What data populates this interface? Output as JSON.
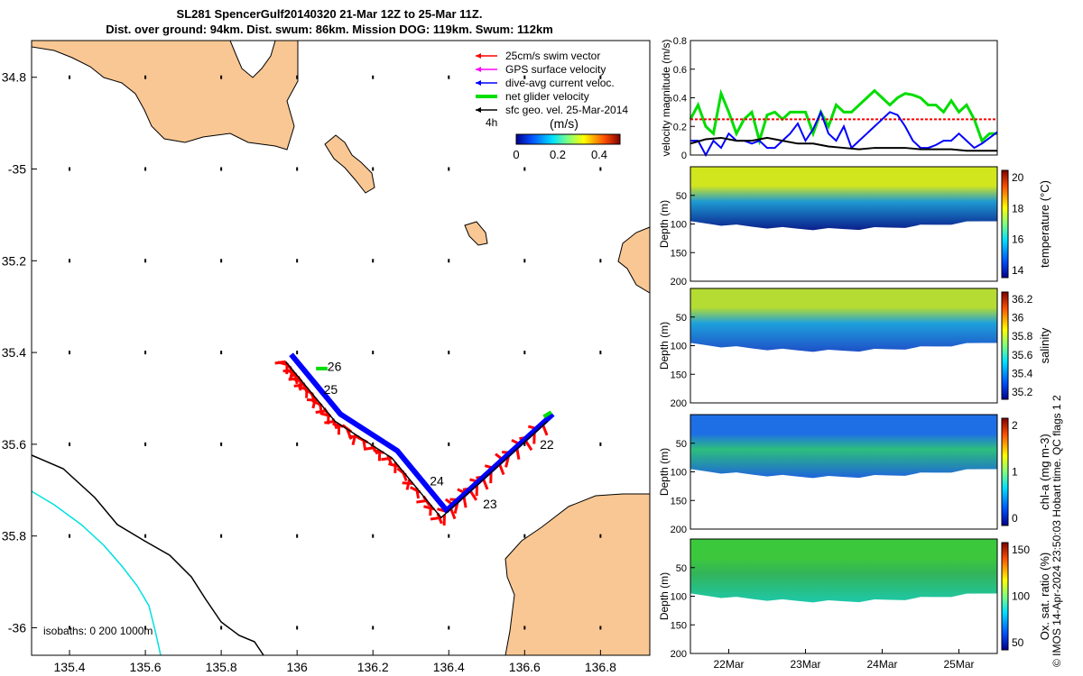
{
  "title": {
    "line1": "SL281 SpencerGulf20140320 21-Mar 12Z to 25-Mar 11Z.",
    "line2": "Dist. over ground: 94km. Dist. swum: 86km. Mission DOG: 119km. Swum: 112km"
  },
  "side_caption": "© IMOS 14-Apr-2024 23:50:03 Hobart time. QC flags 1  2",
  "colors": {
    "land": "#f9c794",
    "swim": "#ff0000",
    "gps": "#ff00ff",
    "dive": "#0000ff",
    "net": "#00dd00",
    "sfc": "#000000",
    "isobath200": "#000000",
    "isobath0": "#00e0e0"
  },
  "chart_data": [
    {
      "type": "map",
      "x_ticks": [
        135.4,
        135.6,
        135.8,
        136,
        136.2,
        136.4,
        136.6,
        136.8
      ],
      "x_tick_labels": [
        "135.4",
        "135.6",
        "135.8",
        "136",
        "136.2",
        "136.4",
        "136.6",
        "136.8"
      ],
      "y_ticks": [
        -34.8,
        -35,
        -35.2,
        -35.4,
        -35.6,
        -35.8,
        -36
      ],
      "y_tick_labels": [
        "34.8",
        "-35",
        "35.2",
        "35.4",
        "35.6",
        "35.8",
        "-36"
      ],
      "xlim": [
        135.3,
        136.93
      ],
      "ylim": [
        -36.06,
        -34.72
      ],
      "legend": [
        {
          "label": "25cm/s swim vector",
          "color": "#ff0000",
          "style": "arrow"
        },
        {
          "label": "GPS surface velocity",
          "color": "#ff00ff",
          "style": "arrow"
        },
        {
          "label": "dive-avg current veloc.",
          "color": "#0000ff",
          "style": "arrow"
        },
        {
          "label": "net glider velocity",
          "color": "#00dd00",
          "style": "thick"
        },
        {
          "label": "sfc geo. vel. 25-Mar-2014",
          "color": "#000000",
          "style": "arrow"
        }
      ],
      "legend_placement": "top-right",
      "colorbar": {
        "label": "(m/s)",
        "corner_label": "4h",
        "ticks": [
          0,
          0.2,
          0.4
        ],
        "tick_labels": [
          "0",
          "0.2",
          "0.4"
        ],
        "range": [
          0,
          0.5
        ]
      },
      "track": [
        {
          "lon": 135.97,
          "lat": -35.42
        },
        {
          "lon": 136.02,
          "lat": -35.47
        },
        {
          "lon": 136.1,
          "lat": -35.55
        },
        {
          "lon": 136.25,
          "lat": -35.63
        },
        {
          "lon": 136.38,
          "lat": -35.76
        },
        {
          "lon": 136.5,
          "lat": -35.67
        },
        {
          "lon": 136.66,
          "lat": -35.55
        }
      ],
      "day_labels": [
        {
          "text": "26",
          "lon": 136.08,
          "lat": -35.44
        },
        {
          "text": "25",
          "lon": 136.07,
          "lat": -35.49
        },
        {
          "text": "24",
          "lon": 136.35,
          "lat": -35.69
        },
        {
          "text": "23",
          "lon": 136.49,
          "lat": -35.74
        },
        {
          "text": "22",
          "lon": 136.64,
          "lat": -35.61
        }
      ],
      "isobath_label": "isobaths: 0   200  1000m"
    },
    {
      "type": "line",
      "ylabel": "velocity magnitude (m/s)",
      "ylim": [
        0,
        0.8
      ],
      "y_ticks": [
        0,
        0.2,
        0.4,
        0.6,
        0.8
      ],
      "y_tick_labels": [
        "0",
        "0.2",
        "0.4",
        "0.6",
        "0.8"
      ],
      "xlim": [
        21.5,
        25.5
      ],
      "series": [
        {
          "color": "#00dd00",
          "x": [
            21.5,
            21.6,
            21.7,
            21.8,
            21.9,
            22.0,
            22.1,
            22.2,
            22.3,
            22.4,
            22.5,
            22.6,
            22.7,
            22.8,
            22.9,
            23.0,
            23.1,
            23.2,
            23.3,
            23.4,
            23.5,
            23.6,
            23.7,
            23.8,
            23.9,
            24.0,
            24.1,
            24.2,
            24.3,
            24.4,
            24.5,
            24.6,
            24.7,
            24.8,
            24.9,
            25.0,
            25.1,
            25.2,
            25.3,
            25.4,
            25.5
          ],
          "y": [
            0.25,
            0.35,
            0.2,
            0.15,
            0.43,
            0.3,
            0.15,
            0.25,
            0.3,
            0.1,
            0.28,
            0.3,
            0.25,
            0.3,
            0.3,
            0.3,
            0.15,
            0.3,
            0.2,
            0.35,
            0.3,
            0.3,
            0.35,
            0.4,
            0.45,
            0.4,
            0.35,
            0.4,
            0.43,
            0.42,
            0.4,
            0.35,
            0.35,
            0.3,
            0.38,
            0.3,
            0.35,
            0.25,
            0.1,
            0.15,
            0.15
          ]
        },
        {
          "color": "#ff0000",
          "dashed": true,
          "x": [
            21.5,
            25.5
          ],
          "y": [
            0.25,
            0.25
          ]
        },
        {
          "color": "#0000ff",
          "x": [
            21.5,
            21.6,
            21.7,
            21.8,
            21.9,
            22.0,
            22.1,
            22.2,
            22.3,
            22.4,
            22.5,
            22.6,
            22.7,
            22.8,
            22.9,
            23.0,
            23.1,
            23.2,
            23.3,
            23.4,
            23.5,
            23.6,
            23.7,
            23.8,
            23.9,
            24.0,
            24.1,
            24.2,
            24.3,
            24.4,
            24.5,
            24.6,
            24.7,
            24.8,
            24.9,
            25.0,
            25.1,
            25.2,
            25.3,
            25.4,
            25.5
          ],
          "y": [
            0.1,
            0.1,
            0.0,
            0.1,
            0.05,
            0.15,
            0.1,
            0.1,
            0.08,
            0.1,
            0.05,
            0.05,
            0.1,
            0.15,
            0.22,
            0.1,
            0.18,
            0.3,
            0.15,
            0.1,
            0.2,
            0.05,
            0.1,
            0.15,
            0.2,
            0.25,
            0.3,
            0.28,
            0.2,
            0.1,
            0.05,
            0.05,
            0.07,
            0.1,
            0.1,
            0.15,
            0.1,
            0.05,
            0.08,
            0.12,
            0.16
          ]
        },
        {
          "color": "#000000",
          "x": [
            21.5,
            21.7,
            21.9,
            22.1,
            22.3,
            22.5,
            22.7,
            22.9,
            23.1,
            23.3,
            23.5,
            23.7,
            23.9,
            24.1,
            24.3,
            24.5,
            24.7,
            24.9,
            25.1,
            25.3,
            25.5
          ],
          "y": [
            0.08,
            0.11,
            0.12,
            0.1,
            0.1,
            0.12,
            0.1,
            0.08,
            0.08,
            0.06,
            0.05,
            0.04,
            0.05,
            0.05,
            0.05,
            0.04,
            0.04,
            0.04,
            0.03,
            0.03,
            0.03
          ]
        }
      ]
    },
    {
      "type": "heatmap",
      "variable": "temperature",
      "ylabel": "Depth (m)",
      "colorbar_label": "temperature (°C)",
      "colorbar_ticks": [
        14,
        16,
        18,
        20
      ],
      "colorbar_tick_labels": [
        "14",
        "16",
        "18",
        "20"
      ],
      "ylim": [
        0,
        200
      ],
      "y_ticks": [
        50,
        100,
        150,
        200
      ],
      "y_tick_labels": [
        "50",
        "100",
        "150",
        "200"
      ],
      "top_color": "#d2e61e",
      "mid_color": "#1e9ad2",
      "bottom_color": "#0a1e8c"
    },
    {
      "type": "heatmap",
      "variable": "salinity",
      "ylabel": "Depth (m)",
      "colorbar_label": "salinity",
      "colorbar_ticks": [
        35.2,
        35.4,
        35.6,
        35.8,
        36,
        36.2
      ],
      "colorbar_tick_labels": [
        "35.2",
        "35.4",
        "35.6",
        "35.8",
        "36",
        "36.2"
      ],
      "ylim": [
        0,
        200
      ],
      "y_ticks": [
        50,
        100,
        150,
        200
      ],
      "y_tick_labels": [
        "50",
        "100",
        "150",
        "200"
      ],
      "top_color": "#b4dc32",
      "mid_color": "#1ea0dc",
      "bottom_color": "#1e50c8"
    },
    {
      "type": "heatmap",
      "variable": "chl-a",
      "ylabel": "Depth (m)",
      "colorbar_label": "chl-a (mg m-3)",
      "colorbar_ticks": [
        0,
        1,
        2
      ],
      "colorbar_tick_labels": [
        "0",
        "1",
        "2"
      ],
      "ylim": [
        0,
        200
      ],
      "y_ticks": [
        50,
        100,
        150,
        200
      ],
      "y_tick_labels": [
        "50",
        "100",
        "150",
        "200"
      ],
      "top_color": "#1e6ee6",
      "mid_color": "#2dbe7d",
      "bottom_color": "#1e64dc"
    },
    {
      "type": "heatmap",
      "variable": "oxygen saturation",
      "ylabel": "Depth (m)",
      "colorbar_label": "Ox. sat. ratio (%)",
      "colorbar_ticks": [
        50,
        100,
        150
      ],
      "colorbar_tick_labels": [
        "50",
        "100",
        "150"
      ],
      "ylim": [
        0,
        200
      ],
      "y_ticks": [
        50,
        100,
        150,
        200
      ],
      "y_tick_labels": [
        "50",
        "100",
        "150",
        "200"
      ],
      "x_ticks": [
        22,
        23,
        24,
        25
      ],
      "x_tick_labels": [
        "22Mar",
        "23Mar",
        "24Mar",
        "25Mar"
      ],
      "top_color": "#3cc83c",
      "mid_color": "#32b45a",
      "bottom_color": "#1ec8aa"
    }
  ]
}
